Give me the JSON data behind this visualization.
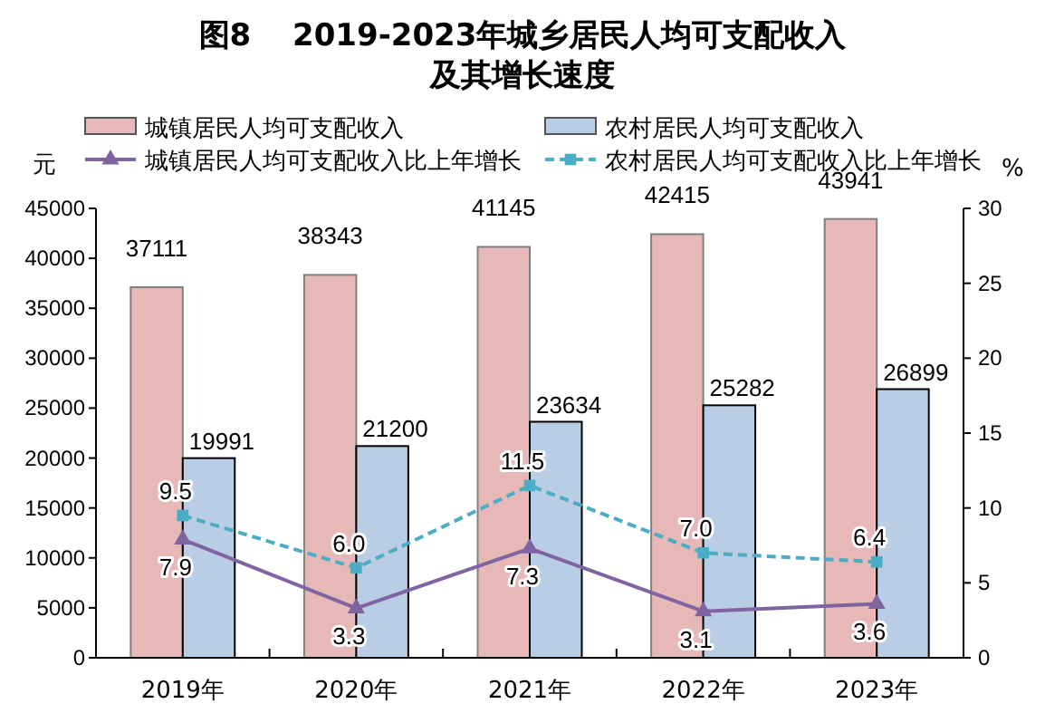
{
  "chart_data": {
    "type": "bar",
    "title": "图8　 2019-2023年城乡居民人均可支配收入及其增长速度",
    "ylabel": "元",
    "y2label": "%",
    "categories": [
      "2019年",
      "2020年",
      "2021年",
      "2022年",
      "2023年"
    ],
    "series": [
      {
        "name": "城镇居民人均可支配收入",
        "color": "#e6b9b8",
        "values": [
          37111,
          38343,
          41145,
          42415,
          43941
        ]
      },
      {
        "name": "农村居民人均可支配收入",
        "color": "#b9cde5",
        "values": [
          19991,
          21200,
          23634,
          25282,
          26899
        ]
      },
      {
        "name": "城镇居民人均可支配收入比上年增长",
        "type": "line",
        "axis": "y2",
        "color": "#8064a2",
        "marker": "triangle",
        "line_style": "solid",
        "values": [
          7.9,
          3.3,
          7.3,
          3.1,
          3.6
        ],
        "value_labels": [
          "7.9",
          "3.3",
          "7.3",
          "3.1",
          "3.6"
        ]
      },
      {
        "name": "农村居民人均可支配收入比上年增长",
        "type": "line",
        "axis": "y2",
        "color": "#4bacc6",
        "marker": "square",
        "line_style": "dashed",
        "values": [
          9.5,
          6.0,
          11.5,
          7.0,
          6.4
        ],
        "value_labels": [
          "9.5",
          "6.0",
          "11.5",
          "7.0",
          "6.4"
        ]
      }
    ],
    "ylim": [
      0,
      45000
    ],
    "yticks": [
      0,
      5000,
      10000,
      15000,
      20000,
      25000,
      30000,
      35000,
      40000,
      45000
    ],
    "y2lim": [
      0,
      30
    ],
    "y2ticks": [
      0,
      5,
      10,
      15,
      20,
      25,
      30
    ],
    "data_labels": true,
    "legend": "top",
    "grid": false
  }
}
